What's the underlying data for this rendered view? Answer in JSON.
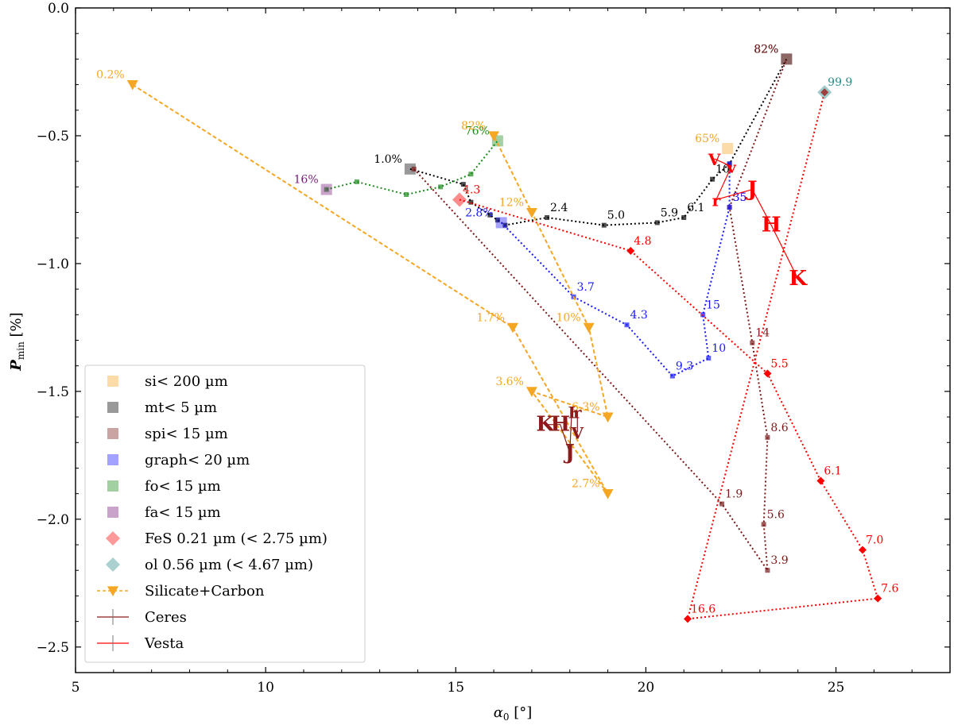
{
  "chart_data": {
    "type": "scatter",
    "xlabel": "α₀ [°]",
    "ylabel": "P_min [%]",
    "ylabel_main": "P",
    "ylabel_sub": "min",
    "ylabel_unit": "[%]",
    "xlim": [
      5,
      28
    ],
    "ylim": [
      -2.6,
      0.0
    ],
    "x_ticks": [
      5,
      10,
      15,
      20,
      25
    ],
    "y_ticks": [
      0.0,
      -0.5,
      -1.0,
      -1.5,
      -2.0,
      -2.5
    ],
    "x_tick_labels": [
      "5",
      "10",
      "15",
      "20",
      "25"
    ],
    "y_tick_labels": [
      "0.0",
      "−0.5",
      "−1.0",
      "−1.5",
      "−2.0",
      "−2.5"
    ],
    "legend_location": "lower-left",
    "series": [
      {
        "name": "si< 200 µm",
        "color": "#f5a623",
        "marker": "square",
        "line": "none",
        "points": [
          {
            "x": 22.15,
            "y": -0.55,
            "label": "65%"
          }
        ]
      },
      {
        "name": "mt< 5 µm",
        "color": "#000000",
        "marker": "square",
        "line": "dotted",
        "points": [
          {
            "x": 13.8,
            "y": -0.63,
            "label": "1.0%"
          },
          {
            "x": 15.2,
            "y": -0.69,
            "label": ""
          },
          {
            "x": 15.4,
            "y": -0.76,
            "label": ""
          },
          {
            "x": 15.9,
            "y": -0.81,
            "label": ""
          },
          {
            "x": 16.1,
            "y": -0.83,
            "label": ""
          },
          {
            "x": 16.3,
            "y": -0.85,
            "label": ""
          },
          {
            "x": 17.4,
            "y": -0.82,
            "label": "2.4"
          },
          {
            "x": 18.9,
            "y": -0.85,
            "label": "5.0"
          },
          {
            "x": 20.3,
            "y": -0.84,
            "label": "5.9"
          },
          {
            "x": 21.0,
            "y": -0.82,
            "label": "6.1"
          },
          {
            "x": 21.75,
            "y": -0.67,
            "label": "10"
          },
          {
            "x": 22.2,
            "y": -0.61,
            "label": ""
          },
          {
            "x": 23.7,
            "y": -0.2,
            "label": "82%"
          }
        ]
      },
      {
        "name": "spi< 15 µm",
        "color": "#7a1a1a",
        "marker": "square",
        "line": "dotted",
        "points": [
          {
            "x": 13.9,
            "y": -0.63,
            "label": ""
          },
          {
            "x": 22.0,
            "y": -1.94,
            "label": "1.9"
          },
          {
            "x": 23.2,
            "y": -2.2,
            "label": "3.9"
          },
          {
            "x": 23.1,
            "y": -2.02,
            "label": "5.6"
          },
          {
            "x": 23.2,
            "y": -1.68,
            "label": "8.6"
          },
          {
            "x": 22.8,
            "y": -1.31,
            "label": "14"
          },
          {
            "x": 22.2,
            "y": -0.78,
            "label": "35"
          },
          {
            "x": 23.7,
            "y": -0.2,
            "label": "82%"
          }
        ]
      },
      {
        "name": "graph< 20 µm",
        "color": "#1a1aff",
        "marker": "square",
        "line": "dotted",
        "points": [
          {
            "x": 16.2,
            "y": -0.84,
            "label": "2.8%"
          },
          {
            "x": 18.1,
            "y": -1.13,
            "label": "3.7"
          },
          {
            "x": 19.5,
            "y": -1.24,
            "label": "4.3"
          },
          {
            "x": 20.7,
            "y": -1.44,
            "label": "9.3"
          },
          {
            "x": 21.65,
            "y": -1.37,
            "label": "10"
          },
          {
            "x": 21.5,
            "y": -1.2,
            "label": "15"
          },
          {
            "x": 22.2,
            "y": -0.78,
            "label": "35"
          },
          {
            "x": 22.2,
            "y": -0.61,
            "label": ""
          }
        ]
      },
      {
        "name": "fo< 15 µm",
        "color": "#1a8a1a",
        "marker": "square",
        "line": "dotted",
        "points": [
          {
            "x": 11.6,
            "y": -0.71,
            "label": ""
          },
          {
            "x": 12.4,
            "y": -0.68,
            "label": ""
          },
          {
            "x": 13.7,
            "y": -0.73,
            "label": ""
          },
          {
            "x": 14.6,
            "y": -0.7,
            "label": ""
          },
          {
            "x": 15.4,
            "y": -0.65,
            "label": ""
          },
          {
            "x": 16.1,
            "y": -0.52,
            "label": "76%"
          }
        ]
      },
      {
        "name": "fa< 15 µm",
        "color": "#7a1a7a",
        "marker": "square",
        "line": "none",
        "points": [
          {
            "x": 11.6,
            "y": -0.71,
            "label": "16%"
          }
        ]
      },
      {
        "name": "FeS 0.21 µm (< 2.75 µm)",
        "color": "#ff0000",
        "marker": "diamond",
        "line": "dotted",
        "points": [
          {
            "x": 15.1,
            "y": -0.75,
            "label": "4.3"
          },
          {
            "x": 19.6,
            "y": -0.95,
            "label": "4.8"
          },
          {
            "x": 23.2,
            "y": -1.43,
            "label": "5.5"
          },
          {
            "x": 24.6,
            "y": -1.85,
            "label": "6.1"
          },
          {
            "x": 25.7,
            "y": -2.12,
            "label": "7.0"
          },
          {
            "x": 26.1,
            "y": -2.31,
            "label": "7.6"
          },
          {
            "x": 21.1,
            "y": -2.39,
            "label": "16.6"
          },
          {
            "x": 24.7,
            "y": -0.33,
            "label": ""
          }
        ]
      },
      {
        "name": "ol 0.56 µm (< 4.67 µm)",
        "color": "#2a8a8a",
        "marker": "diamond",
        "line": "none",
        "points": [
          {
            "x": 24.7,
            "y": -0.33,
            "label": "99.9"
          }
        ]
      },
      {
        "name": "Silicate+Carbon",
        "color": "#f5a623",
        "marker": "triangle-down",
        "line": "dashed",
        "points": [
          {
            "x": 6.5,
            "y": -0.3,
            "label": "0.2%"
          },
          {
            "x": 16.5,
            "y": -1.25,
            "label": "1.7%"
          },
          {
            "x": 19.0,
            "y": -1.9,
            "label": "2.7%"
          },
          {
            "x": 17.0,
            "y": -1.5,
            "label": "3.6%"
          },
          {
            "x": 19.0,
            "y": -1.6,
            "label": "6.3%"
          },
          {
            "x": 18.5,
            "y": -1.25,
            "label": "10%"
          },
          {
            "x": 17.0,
            "y": -0.8,
            "label": "12%"
          },
          {
            "x": 16.0,
            "y": -0.5,
            "label": "82%"
          }
        ]
      },
      {
        "name": "Ceres",
        "color": "#8b1a1a",
        "marker": "letters",
        "line": "solid",
        "points": [
          {
            "x": 17.35,
            "y": -1.63,
            "label": "K"
          },
          {
            "x": 17.75,
            "y": -1.63,
            "label": "H"
          },
          {
            "x": 18.0,
            "y": -1.74,
            "label": "J"
          },
          {
            "x": 18.05,
            "y": -1.58,
            "label": "I"
          },
          {
            "x": 18.2,
            "y": -1.58,
            "label": "r"
          },
          {
            "x": 18.2,
            "y": -1.66,
            "label": "V"
          }
        ]
      },
      {
        "name": "Vesta",
        "color": "#ff0000",
        "marker": "letters",
        "line": "solid",
        "points": [
          {
            "x": 21.8,
            "y": -0.59,
            "label": "V"
          },
          {
            "x": 22.25,
            "y": -0.62,
            "label": "v"
          },
          {
            "x": 21.85,
            "y": -0.75,
            "label": "r"
          },
          {
            "x": 22.8,
            "y": -0.71,
            "label": "J"
          },
          {
            "x": 23.3,
            "y": -0.85,
            "label": "H"
          },
          {
            "x": 24.0,
            "y": -1.06,
            "label": "K"
          }
        ]
      }
    ]
  }
}
